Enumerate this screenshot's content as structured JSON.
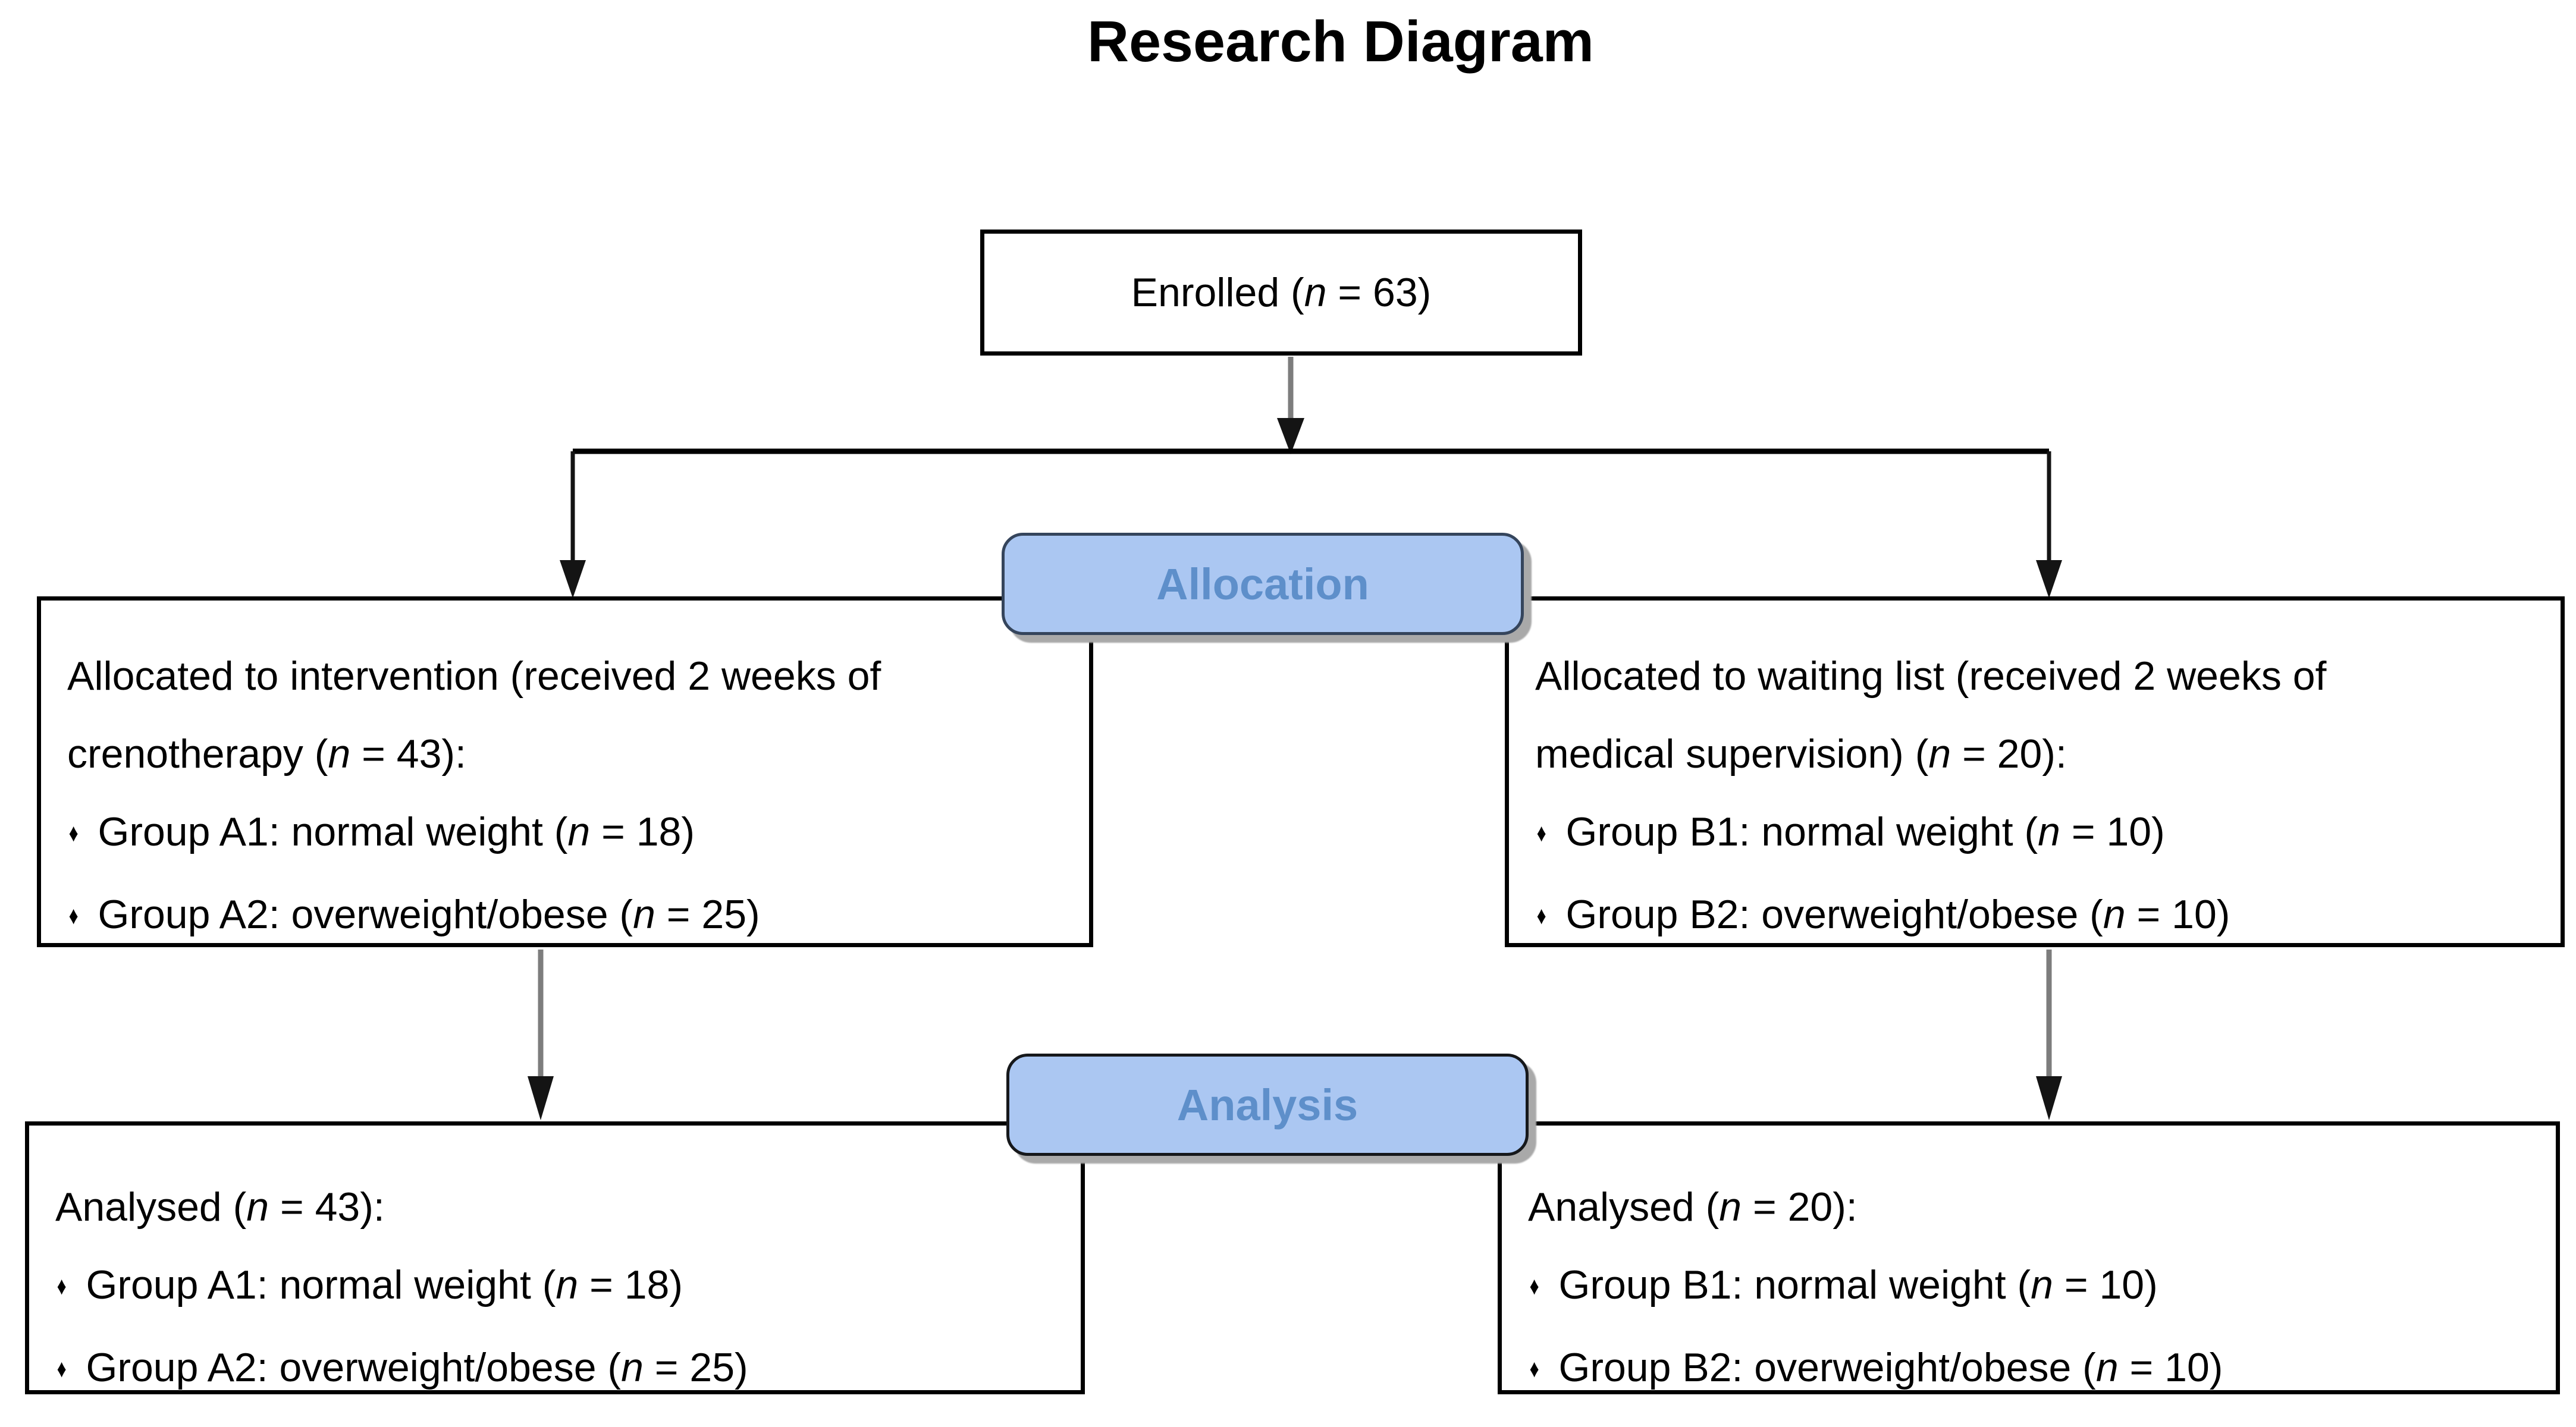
{
  "title": "Research Diagram",
  "stages": {
    "allocation_label": "Allocation",
    "analysis_label": "Analysis"
  },
  "boxes": {
    "enrolled": {
      "lines": [
        {
          "before": "Enrolled (",
          "n": "n",
          "after": " = 63)"
        }
      ]
    },
    "allocation_left": {
      "lines": [
        {
          "before": "Allocated to intervention (received 2 weeks of"
        },
        {
          "before": "crenotherapy (",
          "n": "n",
          "after": " = 43):"
        },
        {
          "bullet": "♦",
          "before": "Group A1: normal weight (",
          "n": "n",
          "after": " = 18)"
        },
        {
          "bullet": "♦",
          "before": "Group A2: overweight/obese (",
          "n": "n",
          "after": " = 25)"
        }
      ]
    },
    "allocation_right": {
      "lines": [
        {
          "before": "Allocated to waiting list (received 2 weeks of"
        },
        {
          "before": "medical supervision) (",
          "n": "n",
          "after": " = 20):"
        },
        {
          "bullet": "♦",
          "before": "Group B1: normal weight (",
          "n": "n",
          "after": " = 10)"
        },
        {
          "bullet": "♦",
          "before": "Group B2: overweight/obese (",
          "n": "n",
          "after": " = 10)"
        }
      ]
    },
    "analysis_left": {
      "lines": [
        {
          "before": "Analysed (",
          "n": "n",
          "after": " = 43):"
        },
        {
          "bullet": "♦",
          "before": "Group A1: normal weight (",
          "n": "n",
          "after": " = 18)"
        },
        {
          "bullet": "♦",
          "before": "Group A2: overweight/obese (",
          "n": "n",
          "after": " = 25)"
        }
      ]
    },
    "analysis_right": {
      "lines": [
        {
          "before": "Analysed (",
          "n": "n",
          "after": " = 20):"
        },
        {
          "bullet": "♦",
          "before": "Group B1: normal weight (",
          "n": "n",
          "after": " = 10)"
        },
        {
          "bullet": "♦",
          "before": "Group B2: overweight/obese (",
          "n": "n",
          "after": " = 10)"
        }
      ]
    }
  },
  "colors": {
    "pill_fill": "#abc7f2",
    "pill_border_allocation": "#35455c",
    "pill_border_analysis": "#16181b",
    "pill_text": "#5e8fca",
    "pill_shadow": "#a9a9a9",
    "box_border": "#000000",
    "arrow_shaft_gray": "#7d7d7d",
    "arrow_head_black": "#141414",
    "line_black": "#000000",
    "title_text": "#000000"
  }
}
